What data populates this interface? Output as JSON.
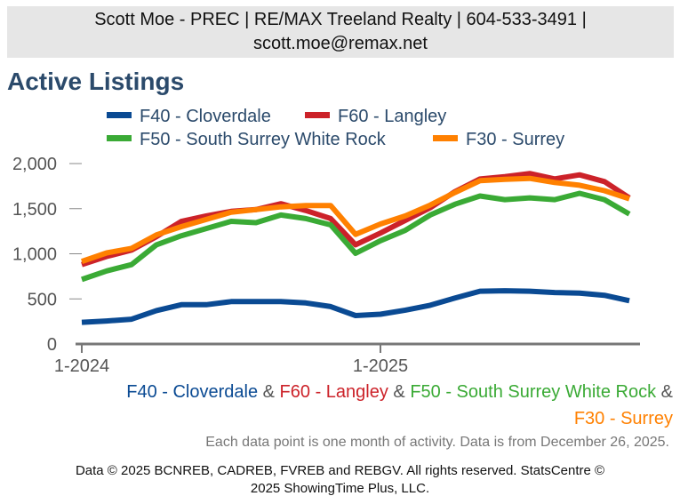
{
  "header": {
    "line1": "Scott Moe - PREC | RE/MAX Treeland Realty | 604-533-3491 |",
    "line2": "scott.moe@remax.net"
  },
  "chart_data": {
    "type": "line",
    "title": "Active Listings",
    "ylim": [
      0,
      2000
    ],
    "yticks": [
      0,
      500,
      1000,
      1500,
      2000
    ],
    "ytick_labels": [
      "0",
      "500",
      "1,000",
      "1,500",
      "2,000"
    ],
    "xtick_labels": [
      {
        "label": "1-2024",
        "index": 0
      },
      {
        "label": "1-2025",
        "index": 12
      }
    ],
    "x": [
      "1-2024",
      "2-2024",
      "3-2024",
      "4-2024",
      "5-2024",
      "6-2024",
      "7-2024",
      "8-2024",
      "9-2024",
      "10-2024",
      "11-2024",
      "12-2024",
      "1-2025",
      "2-2025",
      "3-2025",
      "4-2025",
      "5-2025",
      "6-2025",
      "7-2025",
      "8-2025",
      "9-2025",
      "10-2025",
      "11-2025"
    ],
    "series": [
      {
        "name": "F40 - Cloverdale",
        "color": "#0a4a93",
        "values": [
          240,
          255,
          275,
          370,
          435,
          435,
          470,
          470,
          470,
          455,
          415,
          315,
          330,
          375,
          430,
          510,
          585,
          590,
          585,
          570,
          565,
          540,
          480
        ]
      },
      {
        "name": "F60 - Langley",
        "color": "#cc2229",
        "values": [
          880,
          970,
          1040,
          1190,
          1360,
          1420,
          1470,
          1490,
          1555,
          1480,
          1390,
          1100,
          1230,
          1370,
          1510,
          1690,
          1830,
          1855,
          1890,
          1830,
          1875,
          1800,
          1620
        ]
      },
      {
        "name": "F50 - South Surrey White Rock",
        "color": "#3aaa35",
        "values": [
          715,
          810,
          880,
          1100,
          1200,
          1280,
          1360,
          1345,
          1430,
          1390,
          1320,
          1005,
          1145,
          1260,
          1430,
          1550,
          1640,
          1600,
          1620,
          1600,
          1670,
          1600,
          1440
        ]
      },
      {
        "name": "F30 - Surrey",
        "color": "#ff8000",
        "values": [
          915,
          1010,
          1060,
          1210,
          1300,
          1380,
          1460,
          1490,
          1520,
          1535,
          1535,
          1215,
          1330,
          1420,
          1540,
          1680,
          1810,
          1825,
          1835,
          1790,
          1760,
          1700,
          1610
        ]
      }
    ]
  },
  "caption": {
    "s1": "F40 - Cloverdale",
    "amp1": "&",
    "s2": "F60 - Langley",
    "amp2": "&",
    "s3": "F50 - South Surrey White Rock",
    "amp3": "&",
    "s4": "F30 - Surrey"
  },
  "note": "Each data point is one month of activity. Data is from December 26, 2025.",
  "copyright": {
    "line1": "Data © 2025 BCNREB, CADREB, FVREB and REBGV. All rights reserved. StatsCentre ©",
    "line2": "2025 ShowingTime Plus, LLC."
  }
}
